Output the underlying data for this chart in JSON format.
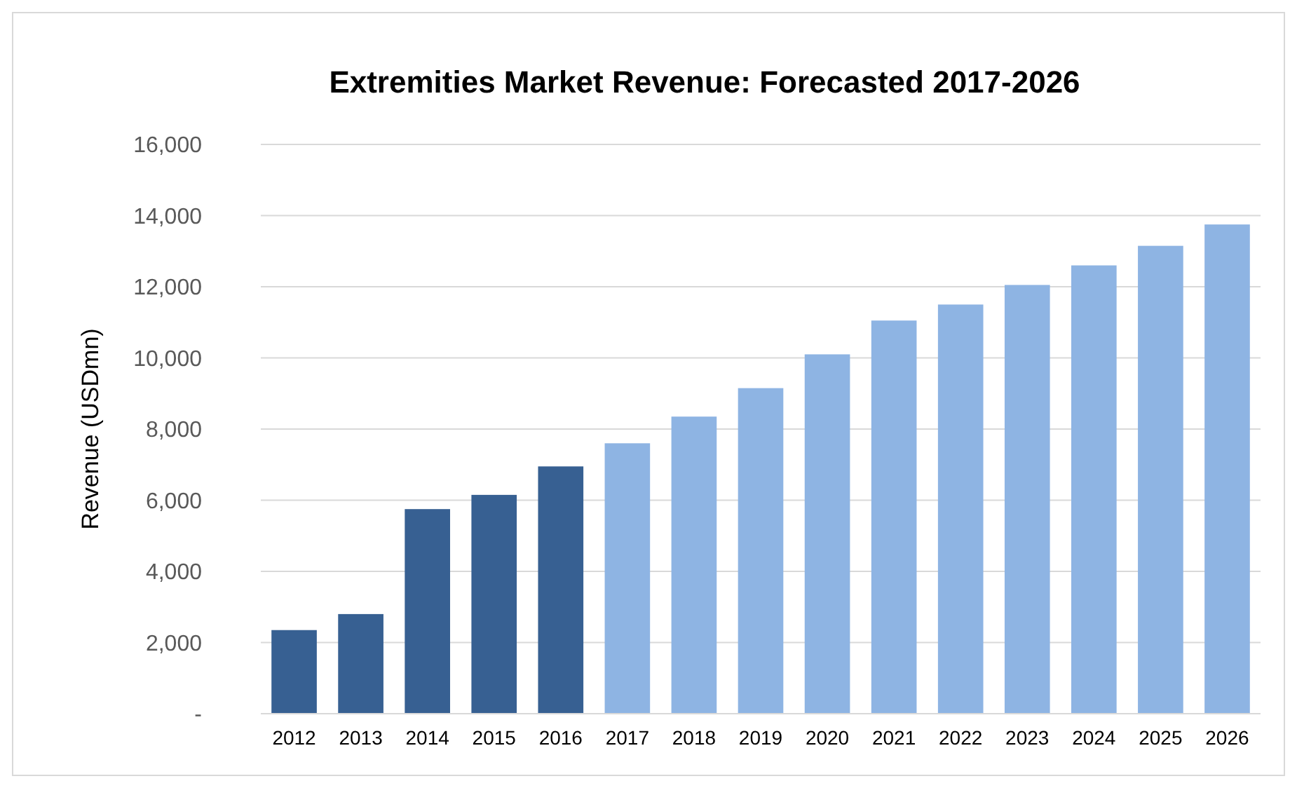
{
  "chart_data": {
    "type": "bar",
    "title": "Extremities Market Revenue: Forecasted 2017-2026",
    "ylabel": "Revenue (USDmn)",
    "categories": [
      "2012",
      "2013",
      "2014",
      "2015",
      "2016",
      "2017",
      "2018",
      "2019",
      "2020",
      "2021",
      "2022",
      "2023",
      "2024",
      "2025",
      "2026"
    ],
    "values": [
      2350,
      2800,
      5750,
      6150,
      6950,
      7600,
      8350,
      9150,
      10100,
      11050,
      11500,
      12050,
      12600,
      13150,
      13750
    ],
    "colors": [
      "#376092",
      "#376092",
      "#376092",
      "#376092",
      "#376092",
      "#8eb4e3",
      "#8eb4e3",
      "#8eb4e3",
      "#8eb4e3",
      "#8eb4e3",
      "#8eb4e3",
      "#8eb4e3",
      "#8eb4e3",
      "#8eb4e3",
      "#8eb4e3"
    ],
    "ylim": [
      0,
      16000
    ],
    "yticks": [
      {
        "value": 0,
        "label": "-"
      },
      {
        "value": 2000,
        "label": "2,000"
      },
      {
        "value": 4000,
        "label": "4,000"
      },
      {
        "value": 6000,
        "label": "6,000"
      },
      {
        "value": 8000,
        "label": "8,000"
      },
      {
        "value": 10000,
        "label": "10,000"
      },
      {
        "value": 12000,
        "label": "12,000"
      },
      {
        "value": 14000,
        "label": "14,000"
      },
      {
        "value": 16000,
        "label": "16,000"
      }
    ],
    "grid": "y"
  }
}
